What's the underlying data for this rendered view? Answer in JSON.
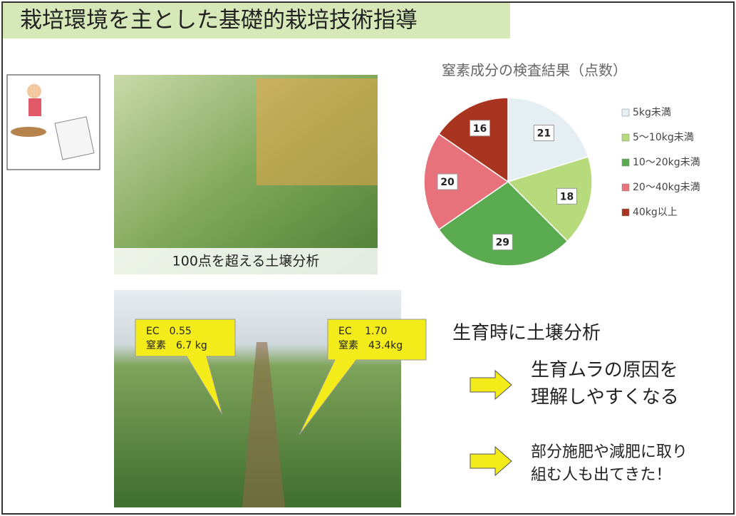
{
  "header": {
    "title": "栽培環境を主とした基礎的栽培技術指導"
  },
  "photo1": {
    "caption": "100点を超える土壌分析"
  },
  "photo2": {
    "callouts": [
      {
        "lines": [
          "EC　0.55",
          "窒素　6.7 kg"
        ]
      },
      {
        "lines": [
          "EC　 1.70",
          "窒素　43.4kg"
        ]
      }
    ]
  },
  "chart_data": {
    "type": "pie",
    "title": "窒素成分の検査結果（点数）",
    "categories": [
      "5kg未満",
      "5～10kg未満",
      "10～20kg未満",
      "20～40kg未満",
      "40kg以上"
    ],
    "values": [
      21,
      18,
      29,
      20,
      16
    ],
    "colors": [
      "#e4eef3",
      "#b7da7c",
      "#5aab4f",
      "#e8727b",
      "#a9341f"
    ],
    "legend": "right"
  },
  "points": [
    {
      "lines": [
        "生育時に土壌分析"
      ]
    },
    {
      "lines": [
        "生育ムラの原因を",
        "理解しやすくなる"
      ]
    },
    {
      "lines": [
        "部分施肥や減肥に取り",
        "組む人も出てきた！"
      ]
    }
  ]
}
